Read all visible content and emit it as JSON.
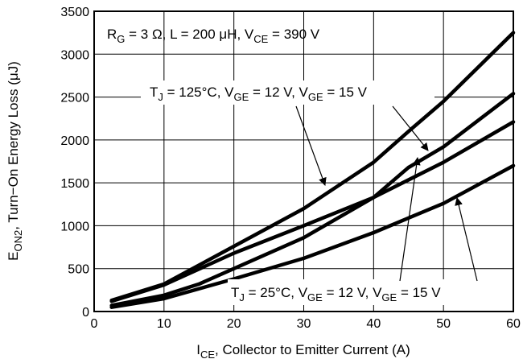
{
  "chart_data": {
    "type": "line",
    "title": "",
    "xlabel": "I<sub>CE</sub>, Collector to Emitter Current (A)",
    "ylabel": "E<sub>ON2</sub>, Turn−On Energy Loss (μJ)",
    "xlim": [
      0,
      60
    ],
    "ylim": [
      0,
      3500
    ],
    "xticks": [
      0,
      10,
      20,
      30,
      40,
      50,
      60
    ],
    "yticks": [
      0,
      500,
      1000,
      1500,
      2000,
      2500,
      3000,
      3500
    ],
    "grid": true,
    "series": [
      {
        "x": [
          2.5,
          10,
          20,
          30,
          40,
          45,
          50,
          60
        ],
        "y": [
          130,
          320,
          760,
          1200,
          1740,
          2100,
          2450,
          3250
        ]
      },
      {
        "x": [
          2.5,
          10,
          20,
          30,
          40,
          50,
          60
        ],
        "y": [
          120,
          310,
          680,
          1000,
          1330,
          1740,
          2210
        ]
      },
      {
        "x": [
          2.5,
          10,
          15,
          20,
          30,
          40,
          45,
          50,
          60
        ],
        "y": [
          70,
          190,
          320,
          500,
          860,
          1330,
          1680,
          1920,
          2540
        ]
      },
      {
        "x": [
          2.5,
          10,
          20,
          30,
          40,
          50,
          60
        ],
        "y": [
          50,
          150,
          380,
          620,
          920,
          1260,
          1700
        ]
      }
    ],
    "annotations": [
      {
        "text": "R<sub>G</sub> = 3 Ω, L = 200 μH, V<sub>CE</sub> = 390 V"
      },
      {
        "text": "T<sub>J</sub> = 125°C, V<sub>GE</sub> = 12 V, V<sub>GE</sub> = 15 V"
      },
      {
        "text": "T<sub>J</sub> = 25°C, V<sub>GE</sub> = 12 V, V<sub>GE</sub> = 15 V"
      }
    ]
  }
}
